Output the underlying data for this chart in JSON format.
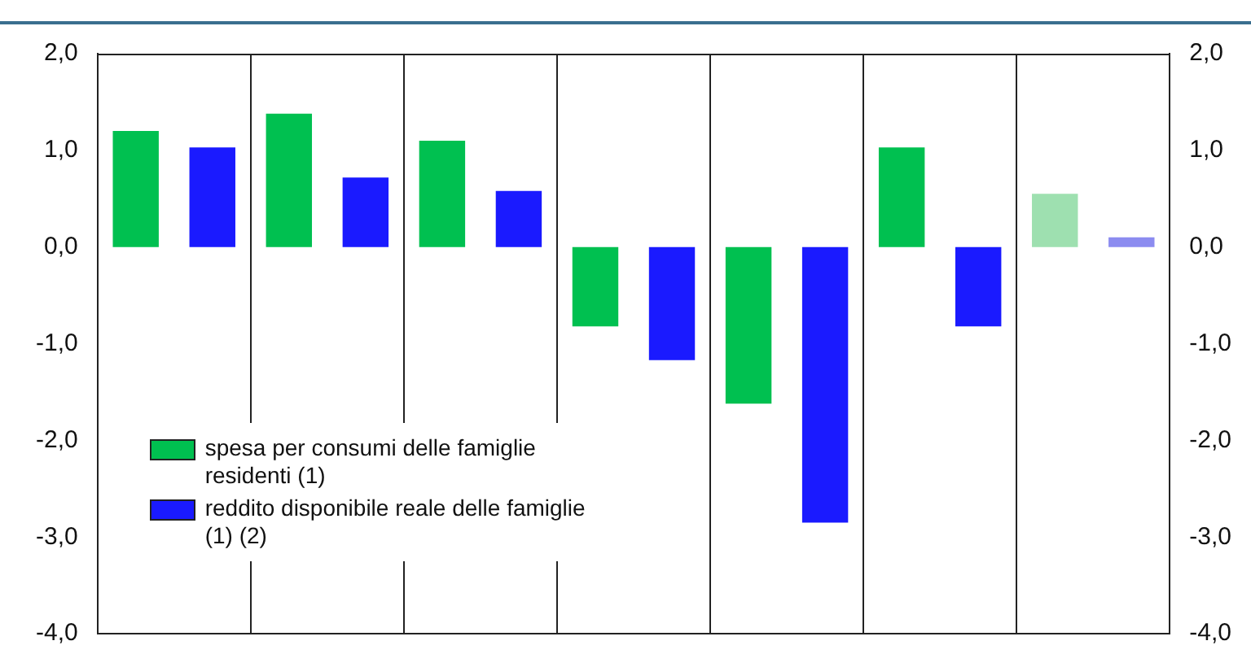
{
  "chart_data": {
    "type": "bar",
    "categories": [
      null,
      null,
      null,
      null,
      null,
      null,
      null
    ],
    "series": [
      {
        "name": "spesa per consumi delle famiglie residenti (1)",
        "color": "#00c050",
        "colors": [
          "#00c050",
          "#00c050",
          "#00c050",
          "#00c050",
          "#00c050",
          "#00c050",
          "#9ee0b0"
        ],
        "values": [
          1.2,
          1.38,
          1.1,
          -0.82,
          -1.62,
          1.03,
          0.55
        ]
      },
      {
        "name": "reddito disponibile reale delle famiglie (1) (2)",
        "color": "#1a1aff",
        "colors": [
          "#1a1aff",
          "#1a1aff",
          "#1a1aff",
          "#1a1aff",
          "#1a1aff",
          "#1a1aff",
          "#8c8cf0"
        ],
        "values": [
          1.03,
          0.72,
          0.58,
          -1.17,
          -2.85,
          -0.82,
          0.1
        ]
      }
    ],
    "ylim": [
      -4,
      2
    ],
    "yticks": [
      {
        "value": 2,
        "label": "2,0"
      },
      {
        "value": 1,
        "label": "1,0"
      },
      {
        "value": 0,
        "label": "0,0"
      },
      {
        "value": -1,
        "label": "-1,0"
      },
      {
        "value": -2,
        "label": "-2,0"
      },
      {
        "value": -3,
        "label": "-3,0"
      },
      {
        "value": -4,
        "label": "-4,0"
      }
    ],
    "y2lim": [
      -4,
      2
    ],
    "y2ticks": [
      {
        "value": 2,
        "label": "2,0"
      },
      {
        "value": 1,
        "label": "1,0"
      },
      {
        "value": 0,
        "label": "0,0"
      },
      {
        "value": -1,
        "label": "-1,0"
      },
      {
        "value": -2,
        "label": "-2,0"
      },
      {
        "value": -3,
        "label": "-3,0"
      },
      {
        "value": -4,
        "label": "-4,0"
      }
    ],
    "grid": "x",
    "legend": "bottom left"
  }
}
